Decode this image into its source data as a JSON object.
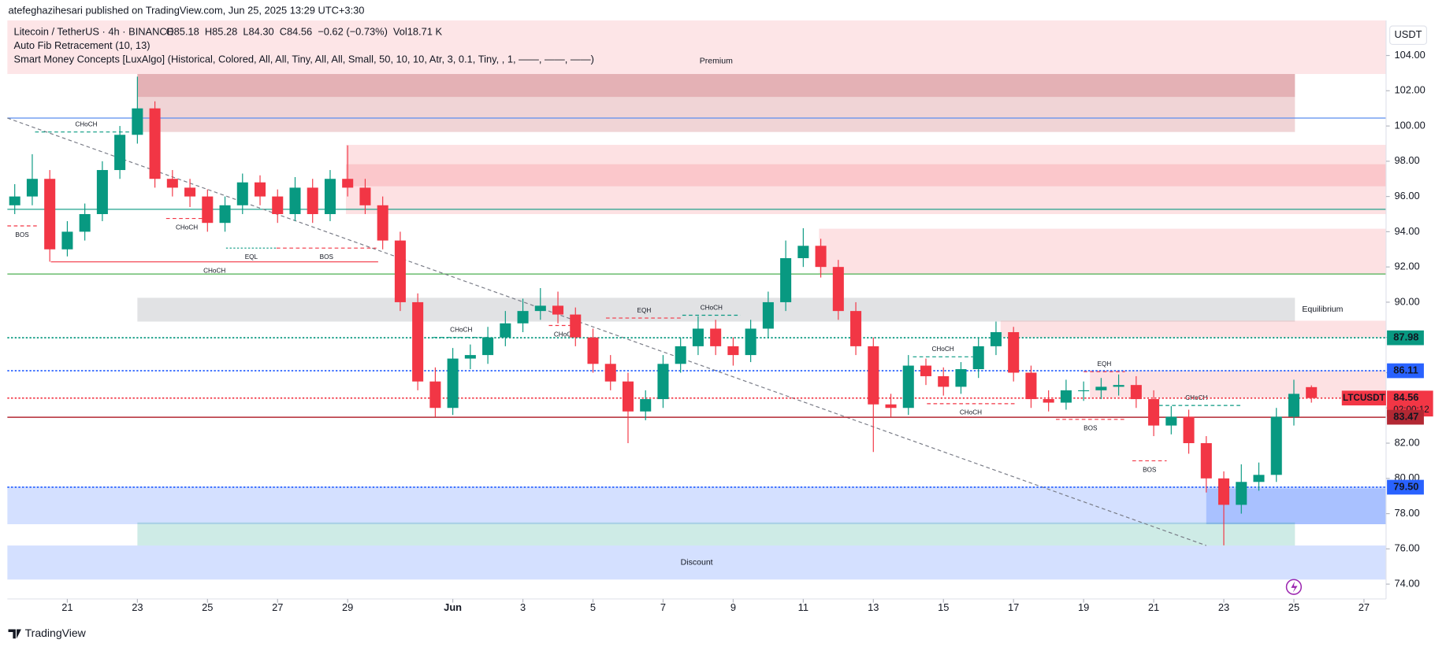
{
  "header": {
    "publisher": "atefeghazihesari published on TradingView.com, Jun 25, 2025 13:29 UTC+3:30",
    "indicators": [
      "Auto Fib Retracement (10, 13)",
      "Smart Money Concepts [LuxAlgo] (Historical, Colored, All, All, Tiny, All, All, Small, 50, 10, 10, Atr, 3, 0.1, Tiny, , 1, ——, ——, ——)"
    ],
    "ohlc": [
      "O85.18",
      "H85.28",
      "L84.30",
      "C84.56",
      "−0.62 (−0.73%)",
      "Vol18.71 K"
    ],
    "currency": "USDT",
    "symbol": "LTCUSDT",
    "countdown": "02:00:12",
    "logo": "TradingView"
  },
  "chart_data": {
    "type": "candlestick",
    "title": "Litecoin / TetherUS · 4h · BINANCE",
    "up_color": "#089981",
    "down_color": "#f23645",
    "x": [
      19.5,
      20,
      20.5,
      21,
      21.5,
      22,
      22.5,
      23,
      23.5,
      24,
      24.5,
      25,
      25.5,
      26,
      26.5,
      27,
      27.5,
      28,
      28.5,
      29,
      29.5,
      30,
      30.5,
      31,
      31.5,
      32,
      32.5,
      33,
      33.5,
      34,
      34.5,
      35,
      35.5,
      36,
      36.5,
      37,
      37.5,
      38,
      38.5,
      39,
      39.5,
      40,
      40.5,
      41,
      41.5,
      42,
      42.5,
      43,
      43.5,
      44,
      44.5,
      45,
      45.5,
      46,
      46.5,
      47,
      47.5,
      48,
      48.5,
      49,
      49.5,
      50,
      50.5,
      51,
      51.5,
      52,
      52.5,
      53,
      53.5,
      54,
      54.5,
      55,
      55.5,
      56,
      56.5
    ],
    "open": [
      95.5,
      96,
      97,
      93,
      94,
      95,
      97.5,
      99.5,
      101,
      97,
      96.5,
      96,
      94.5,
      95.5,
      96.8,
      96,
      95,
      96.5,
      95,
      97,
      96.5,
      95.5,
      93.5,
      90,
      85.5,
      84,
      86.8,
      87,
      88,
      88.8,
      89.5,
      89.8,
      89.3,
      88,
      86.5,
      85.5,
      83.8,
      84.5,
      86.5,
      87.5,
      88.5,
      87.5,
      87,
      88.5,
      90,
      92.5,
      93.2,
      92,
      89.5,
      87.5,
      84.2,
      84,
      86.4,
      85.8,
      85.2,
      86.2,
      87.5,
      88.3,
      86,
      84.5,
      84.3,
      85,
      85,
      85.2,
      85.3,
      84.5,
      83,
      83.5,
      82,
      80,
      78.5,
      79.8,
      80.2,
      83.5,
      85.18
    ],
    "high": [
      96.7,
      98.4,
      97.5,
      94.6,
      95.6,
      98,
      100,
      102.8,
      101.4,
      97.5,
      97,
      96.4,
      96,
      97.3,
      97.2,
      96.4,
      97.1,
      97,
      97.5,
      98.9,
      97,
      96,
      94,
      90.5,
      86.3,
      87.4,
      87.6,
      88.6,
      89.5,
      90.2,
      90.8,
      90.6,
      89.7,
      88.5,
      87,
      86,
      85,
      87,
      88,
      89.2,
      89,
      88,
      89,
      90.6,
      93.5,
      94.2,
      93.6,
      92.4,
      90,
      88,
      84.8,
      87,
      86.8,
      86.3,
      86.6,
      88,
      88.9,
      88.6,
      86.4,
      85,
      85.6,
      85.5,
      85.7,
      85.9,
      85.8,
      85,
      84.1,
      83.9,
      82.4,
      80.4,
      80.8,
      80.9,
      84,
      85.6,
      85.28
    ],
    "low": [
      95,
      95.5,
      92.3,
      92.6,
      93.5,
      94.6,
      97,
      99,
      96.5,
      96,
      95.4,
      94,
      94,
      95,
      95.5,
      94.5,
      94.6,
      94.5,
      94.6,
      96,
      95,
      93,
      89.5,
      85,
      83.5,
      83.6,
      86.2,
      86.5,
      87.5,
      88.3,
      89,
      88.8,
      87.5,
      86,
      85,
      82,
      83.3,
      84,
      86,
      87,
      87,
      86.4,
      86.6,
      88,
      89.5,
      92,
      91.4,
      89,
      87,
      81.5,
      83.5,
      83.6,
      85.3,
      84.7,
      84.8,
      85.7,
      87,
      85.5,
      84,
      83.8,
      83.9,
      84.4,
      84.5,
      84.7,
      84,
      82.4,
      82.5,
      81.4,
      79.2,
      76.2,
      78,
      79.3,
      79.8,
      83,
      84.3
    ],
    "close": [
      96,
      97,
      93,
      94,
      95,
      97.5,
      99.5,
      101,
      97,
      96.5,
      96,
      94.5,
      95.5,
      96.8,
      96,
      95,
      96.5,
      95,
      97,
      96.5,
      95.5,
      93.5,
      90,
      85.5,
      84,
      86.8,
      87,
      88,
      88.8,
      89.5,
      89.8,
      89.3,
      88,
      86.5,
      85.5,
      83.8,
      84.5,
      86.5,
      87.5,
      88.5,
      87.5,
      87,
      88.5,
      90,
      92.5,
      93.2,
      92,
      89.5,
      87.5,
      84.2,
      84,
      86.4,
      85.8,
      85.2,
      86.2,
      87.5,
      88.3,
      86,
      84.5,
      84.3,
      85,
      85,
      85.2,
      85.3,
      84.5,
      83,
      83.5,
      82,
      80,
      78.5,
      79.8,
      80.2,
      83.5,
      84.8,
      84.56
    ],
    "xlim": [
      19.29,
      58.63
    ],
    "ylim": [
      73.16,
      105.99
    ],
    "xticks": [
      21,
      23,
      25,
      27,
      29,
      {
        "value": 32,
        "label": "Jun"
      },
      {
        "value": 34,
        "label": "3"
      },
      {
        "value": 36,
        "label": "5"
      },
      {
        "value": 38,
        "label": "7"
      },
      {
        "value": 40,
        "label": "9"
      },
      {
        "value": 42,
        "label": "11"
      },
      {
        "value": 44,
        "label": "13"
      },
      {
        "value": 46,
        "label": "15"
      },
      {
        "value": 48,
        "label": "17"
      },
      {
        "value": 50,
        "label": "19"
      },
      {
        "value": 52,
        "label": "21"
      },
      {
        "value": 54,
        "label": "23"
      },
      {
        "value": 56,
        "label": "25"
      },
      {
        "value": 58,
        "label": "27"
      }
    ],
    "yticks": [
      {
        "value": 74,
        "label": "74.00"
      },
      {
        "value": 76,
        "label": "76.00"
      },
      {
        "value": 78,
        "label": "78.00"
      },
      {
        "value": 80,
        "label": "80.00"
      },
      {
        "value": 82,
        "label": "82.00"
      },
      {
        "value": 84,
        "label": "84.00"
      },
      {
        "value": 86,
        "label": "86.00"
      },
      {
        "value": 88,
        "label": "88.00"
      },
      {
        "value": 90,
        "label": "90.00"
      },
      {
        "value": 92,
        "label": "92.00"
      },
      {
        "value": 94,
        "label": "94.00"
      },
      {
        "value": 96,
        "label": "96.00"
      },
      {
        "value": 98,
        "label": "98.00"
      },
      {
        "value": 100,
        "label": "100.00"
      },
      {
        "value": 102,
        "label": "102.00"
      },
      {
        "value": 104,
        "label": "104.00"
      }
    ],
    "zones": [
      {
        "x": [
          19.29,
          58.63
        ],
        "y": [
          102.95,
          105.99
        ],
        "color": "rgba(242,54,69,0.13)"
      },
      {
        "x": [
          23,
          56.03
        ],
        "y": [
          99.66,
          102.95
        ],
        "color": "rgba(178,40,51,0.2)",
        "label": "Premium",
        "label_side": "above"
      },
      {
        "x": [
          23,
          56.03
        ],
        "y": [
          101.65,
          102.95
        ],
        "color": "rgba(178,40,51,0.2)"
      },
      {
        "x": [
          28.95,
          58.63
        ],
        "y": [
          95,
          98.93
        ],
        "color": "rgba(242,54,69,0.15)"
      },
      {
        "x": [
          28.95,
          58.63
        ],
        "y": [
          96.58,
          97.83
        ],
        "color": "rgba(242,54,69,0.15)"
      },
      {
        "x": [
          42.45,
          58.63
        ],
        "y": [
          91.6,
          94.17
        ],
        "color": "rgba(242,54,69,0.15)"
      },
      {
        "x": [
          23,
          56.03
        ],
        "y": [
          88.9,
          90.25
        ],
        "color": "rgba(120,123,134,0.22)",
        "label": "Equilibrium",
        "label_side": "right"
      },
      {
        "x": [
          47.63,
          58.63
        ],
        "y": [
          88,
          88.95
        ],
        "color": "rgba(242,54,69,0.15)"
      },
      {
        "x": [
          50.18,
          58.63
        ],
        "y": [
          84.6,
          86.12
        ],
        "color": "rgba(242,54,69,0.15)"
      },
      {
        "x": [
          19.29,
          58.63
        ],
        "y": [
          77.4,
          79.54
        ],
        "color": "rgba(41,98,255,0.2)"
      },
      {
        "x": [
          53.5,
          58.63
        ],
        "y": [
          77.4,
          79.43
        ],
        "color": "rgba(41,98,255,0.25)"
      },
      {
        "x": [
          23,
          56.03
        ],
        "y": [
          76.19,
          77.5
        ],
        "color": "rgba(8,153,129,0.2)"
      },
      {
        "x": [
          19.29,
          58.63
        ],
        "y": [
          74.26,
          76.19
        ],
        "color": "rgba(41,98,255,0.2)",
        "label": "Discount",
        "label_side": "center"
      }
    ],
    "levels": [
      {
        "value": 100.45,
        "color": "#5b8def"
      },
      {
        "value": 95.27,
        "color": "#089981"
      },
      {
        "value": 91.6,
        "color": "#4caf50"
      }
    ],
    "structure": [
      {
        "label": "CHoCH",
        "x": [
          20.08,
          23
        ],
        "y": 99.66,
        "color": "#089981",
        "dash": "dashed",
        "side": "above"
      },
      {
        "label": "BOS",
        "x": [
          19.29,
          20.13
        ],
        "y": 94.33,
        "color": "#f23645",
        "dash": "dashed",
        "side": "below"
      },
      {
        "label": "CHoCH",
        "x": [
          23.82,
          25
        ],
        "y": 94.75,
        "color": "#f23645",
        "dash": "dashed",
        "side": "below"
      },
      {
        "label": "EQL",
        "x": [
          25.53,
          26.97
        ],
        "y": 93.07,
        "color": "#089981",
        "dash": "dotted",
        "side": "below"
      },
      {
        "label": "BOS",
        "x": [
          26.97,
          29.82
        ],
        "y": 93.07,
        "color": "#f23645",
        "dash": "dashed",
        "side": "below"
      },
      {
        "label": "CHoCH",
        "x": [
          20.53,
          29.87
        ],
        "y": 92.29,
        "color": "#f23645",
        "dash": "solid",
        "side": "below"
      },
      {
        "label": "CHoCH",
        "x": [
          31.45,
          33.03
        ],
        "y": 88,
        "color": "#089981",
        "dash": "dashed",
        "side": "above"
      },
      {
        "label": "EQH",
        "x": [
          36.37,
          38.55
        ],
        "y": 89.1,
        "color": "#f23645",
        "dash": "dashed",
        "side": "above"
      },
      {
        "label": "CHoCH",
        "x": [
          38.55,
          40.21
        ],
        "y": 89.26,
        "color": "#089981",
        "dash": "dashed",
        "side": "above"
      },
      {
        "label": "CHoCH",
        "x": [
          34.74,
          35.66
        ],
        "y": 88.68,
        "color": "#f23645",
        "dash": "dashed",
        "side": "below"
      },
      {
        "label": "CHoCH",
        "x": [
          45.13,
          46.84
        ],
        "y": 86.9,
        "color": "#089981",
        "dash": "dashed",
        "side": "above"
      },
      {
        "label": "CHoCH",
        "x": [
          45.53,
          48.03
        ],
        "y": 84.24,
        "color": "#f23645",
        "dash": "dashed",
        "side": "below"
      },
      {
        "label": "EQH",
        "x": [
          50,
          51.18
        ],
        "y": 86.06,
        "color": "#f23645",
        "dash": "dashed",
        "side": "above"
      },
      {
        "label": "BOS",
        "x": [
          49.21,
          51.18
        ],
        "y": 83.35,
        "color": "#f23645",
        "dash": "dashed",
        "side": "below"
      },
      {
        "label": "BOS",
        "x": [
          51.39,
          52.37
        ],
        "y": 81,
        "color": "#f23645",
        "dash": "dashed",
        "side": "below"
      },
      {
        "label": "CHoCH",
        "x": [
          51.97,
          54.47
        ],
        "y": 84.14,
        "color": "#089981",
        "dash": "dashed",
        "side": "above"
      }
    ],
    "trendline": {
      "x": [
        19.29,
        53.5
      ],
      "y": [
        100.45,
        76.19
      ]
    },
    "price_lines": [
      {
        "value": 87.98,
        "label": "87.98",
        "color": "#089981",
        "dash": "dotted"
      },
      {
        "value": 86.11,
        "label": "86.11",
        "color": "#2962ff",
        "dash": "dotted"
      },
      {
        "value": 84.56,
        "label": "84.56",
        "color": "#f23645",
        "dash": "dotted",
        "last": true
      },
      {
        "value": 83.47,
        "label": "83.47",
        "color": "#b22833",
        "dash": "solid"
      },
      {
        "value": 79.5,
        "label": "79.50",
        "color": "#2962ff",
        "dash": "dotted"
      }
    ]
  }
}
